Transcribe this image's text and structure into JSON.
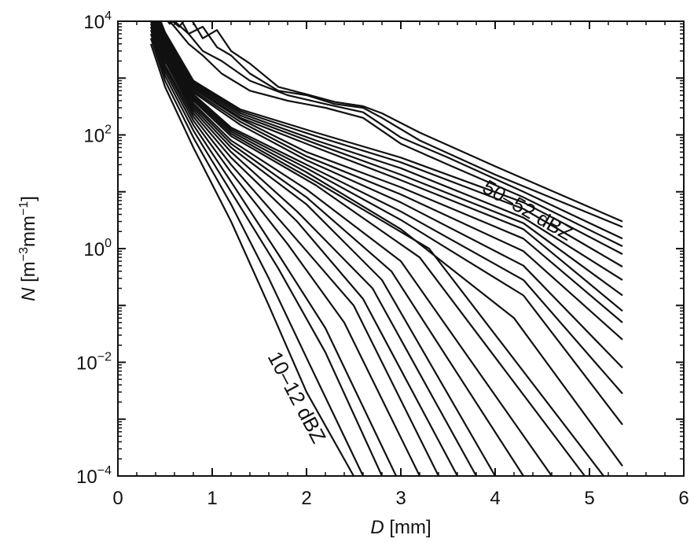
{
  "chart_data": {
    "type": "line",
    "xlabel": {
      "italic": "D",
      "rest": "[mm]"
    },
    "ylabel": {
      "italic": "N",
      "unit": "[m",
      "e1": "−3",
      "mid": "mm",
      "e2": "−1",
      "end": "]"
    },
    "xlim": [
      0,
      6
    ],
    "ylim": [
      0.0001,
      10000
    ],
    "yscale": "log",
    "x_ticks": [
      "0",
      "1",
      "2",
      "3",
      "4",
      "5",
      "6"
    ],
    "y_ticks": [
      {
        "base": "10",
        "exp": "−4"
      },
      {
        "base": "10",
        "exp": "−2"
      },
      {
        "base": "10",
        "exp": "0"
      },
      {
        "base": "10",
        "exp": "2"
      },
      {
        "base": "10",
        "exp": "4"
      }
    ],
    "grid": false,
    "line_color": "#111111",
    "annotations": {
      "top_label": "50–52 dBZ",
      "bottom_label": "10–12 dBZ"
    },
    "series": [
      {
        "x": [
          0.35,
          0.5,
          0.8,
          1.2,
          1.6,
          2.0,
          2.5
        ],
        "y": [
          4000,
          700,
          60,
          3,
          0.1,
          0.003,
          0.0001
        ]
      },
      {
        "x": [
          0.35,
          0.5,
          0.8,
          1.2,
          1.6,
          2.0,
          2.6
        ],
        "y": [
          5000,
          900,
          90,
          6,
          0.3,
          0.012,
          0.0001
        ]
      },
      {
        "x": [
          0.35,
          0.5,
          0.8,
          1.2,
          1.7,
          2.2,
          2.8
        ],
        "y": [
          6000,
          1100,
          120,
          10,
          0.45,
          0.015,
          0.0001
        ]
      },
      {
        "x": [
          0.35,
          0.5,
          0.8,
          1.2,
          1.7,
          2.2,
          2.95
        ],
        "y": [
          7000,
          1300,
          150,
          15,
          0.8,
          0.04,
          0.0001
        ]
      },
      {
        "x": [
          0.35,
          0.5,
          0.8,
          1.2,
          1.8,
          2.4,
          3.2
        ],
        "y": [
          8000,
          1500,
          180,
          22,
          1.2,
          0.05,
          0.0001
        ]
      },
      {
        "x": [
          0.35,
          0.5,
          0.8,
          1.2,
          1.8,
          2.5,
          3.4
        ],
        "y": [
          9000,
          1700,
          210,
          30,
          2.2,
          0.1,
          0.0001
        ]
      },
      {
        "x": [
          0.35,
          0.5,
          0.8,
          1.2,
          1.9,
          2.6,
          3.6
        ],
        "y": [
          10000,
          2000,
          240,
          40,
          3.0,
          0.13,
          0.0001
        ]
      },
      {
        "x": [
          0.35,
          0.5,
          0.8,
          1.2,
          1.9,
          2.7,
          3.8
        ],
        "y": [
          11000,
          2200,
          270,
          50,
          4.5,
          0.2,
          0.0001
        ]
      },
      {
        "x": [
          0.35,
          0.5,
          0.8,
          1.2,
          2.0,
          2.8,
          4.0
        ],
        "y": [
          12000,
          2500,
          300,
          60,
          6.0,
          0.28,
          0.0001
        ]
      },
      {
        "x": [
          0.35,
          0.5,
          0.8,
          1.2,
          2.0,
          2.9,
          4.3
        ],
        "y": [
          13000,
          2800,
          330,
          70,
          8.0,
          0.4,
          0.0001
        ]
      },
      {
        "x": [
          0.35,
          0.5,
          0.8,
          1.2,
          2.0,
          3.0,
          4.6
        ],
        "y": [
          14000,
          3000,
          360,
          80,
          11,
          0.6,
          0.0001
        ]
      },
      {
        "x": [
          0.35,
          0.5,
          0.8,
          1.2,
          2.1,
          3.2,
          4.95
        ],
        "y": [
          15000,
          3300,
          400,
          95,
          13,
          0.7,
          0.0001
        ]
      },
      {
        "x": [
          0.35,
          0.5,
          0.8,
          1.2,
          2.1,
          3.3,
          5.15
        ],
        "y": [
          16000,
          3500,
          430,
          105,
          15,
          1.0,
          0.0001
        ]
      },
      {
        "x": [
          0.35,
          0.5,
          0.8,
          1.2,
          2.0,
          3.0,
          4.2,
          5.35
        ],
        "y": [
          17000,
          3700,
          460,
          115,
          22,
          2.2,
          0.06,
          0.00015
        ]
      },
      {
        "x": [
          0.35,
          0.5,
          0.8,
          1.2,
          2.0,
          3.0,
          4.3,
          5.35
        ],
        "y": [
          18000,
          3900,
          490,
          125,
          26,
          3.2,
          0.15,
          0.0008
        ]
      },
      {
        "x": [
          0.35,
          0.5,
          0.8,
          1.2,
          2.0,
          3.0,
          4.3,
          5.35
        ],
        "y": [
          19000,
          4100,
          520,
          135,
          30,
          4.5,
          0.28,
          0.0028
        ]
      },
      {
        "x": [
          0.35,
          0.5,
          0.8,
          1.3,
          2.0,
          3.0,
          4.3,
          5.35
        ],
        "y": [
          20000,
          4300,
          560,
          150,
          36,
          6.5,
          0.5,
          0.008
        ]
      },
      {
        "x": [
          0.35,
          0.5,
          0.8,
          1.3,
          2.0,
          3.0,
          4.3,
          5.35
        ],
        "y": [
          21000,
          4600,
          600,
          170,
          42,
          9.0,
          0.9,
          0.025
        ]
      },
      {
        "x": [
          0.35,
          0.5,
          0.8,
          1.3,
          2.0,
          3.0,
          4.3,
          5.35
        ],
        "y": [
          22000,
          4900,
          650,
          190,
          50,
          12,
          1.5,
          0.05
        ]
      },
      {
        "x": [
          0.35,
          0.5,
          0.8,
          1.3,
          2.1,
          3.0,
          4.3,
          5.35
        ],
        "y": [
          23000,
          5200,
          700,
          200,
          60,
          16,
          2.2,
          0.08
        ]
      },
      {
        "x": [
          0.35,
          0.5,
          0.8,
          1.3,
          2.1,
          3.0,
          4.3,
          5.35
        ],
        "y": [
          24000,
          5500,
          750,
          220,
          70,
          20,
          2.8,
          0.15
        ]
      },
      {
        "x": [
          0.35,
          0.5,
          0.8,
          1.3,
          2.1,
          3.0,
          4.3,
          5.35
        ],
        "y": [
          25000,
          5800,
          800,
          240,
          80,
          26,
          3.5,
          0.28
        ]
      },
      {
        "x": [
          0.35,
          0.5,
          0.8,
          1.3,
          2.1,
          3.0,
          4.3,
          5.35
        ],
        "y": [
          26000,
          6100,
          850,
          260,
          95,
          33,
          5.0,
          0.48
        ]
      },
      {
        "x": [
          0.35,
          0.5,
          0.8,
          1.3,
          2.1,
          3.0,
          4.3,
          5.35
        ],
        "y": [
          27000,
          6400,
          900,
          280,
          110,
          40,
          6.5,
          0.8
        ]
      },
      {
        "x": [
          0.35,
          0.45,
          0.6,
          0.75,
          0.9,
          1.1,
          1.4,
          1.8,
          2.2,
          2.6,
          3.0,
          3.5,
          4.3,
          5.35
        ],
        "y": [
          20000,
          15000,
          8000,
          4000,
          2500,
          1200,
          600,
          400,
          300,
          200,
          70,
          30,
          8,
          1.1
        ]
      },
      {
        "x": [
          0.35,
          0.45,
          0.6,
          0.75,
          0.9,
          1.1,
          1.4,
          1.8,
          2.2,
          2.6,
          3.0,
          3.5,
          4.3,
          5.35
        ],
        "y": [
          20000,
          18000,
          10000,
          6000,
          3000,
          2000,
          900,
          500,
          350,
          250,
          90,
          40,
          10,
          1.5
        ]
      },
      {
        "x": [
          0.35,
          0.45,
          0.55,
          0.65,
          0.75,
          0.9,
          1.05,
          1.2,
          1.4,
          1.7,
          2.0,
          2.3,
          2.6,
          2.8,
          3.2,
          4.0,
          5.35
        ],
        "y": [
          20000,
          15000,
          9000,
          12000,
          6000,
          8000,
          3500,
          2500,
          1200,
          600,
          500,
          350,
          300,
          200,
          80,
          20,
          2.4
        ]
      },
      {
        "x": [
          0.35,
          0.45,
          0.55,
          0.65,
          0.75,
          0.9,
          1.05,
          1.2,
          1.4,
          1.7,
          2.0,
          2.3,
          2.6,
          2.8,
          3.2,
          4.0,
          5.35
        ],
        "y": [
          20000,
          14000,
          11000,
          8000,
          13000,
          5000,
          7000,
          3000,
          1800,
          700,
          520,
          380,
          320,
          240,
          110,
          28,
          3.0
        ]
      }
    ]
  }
}
